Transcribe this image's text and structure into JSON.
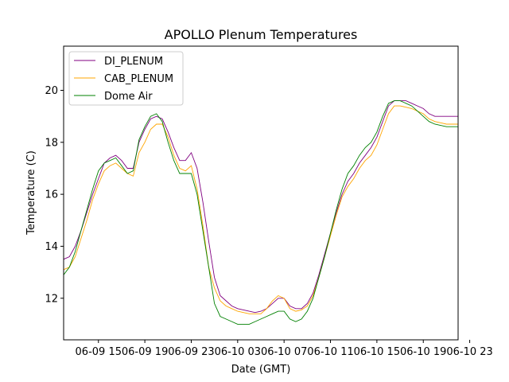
{
  "chart_data": {
    "type": "line",
    "title": "APOLLO Plenum Temperatures",
    "xlabel": "Date (GMT)",
    "ylabel": "Temperature (C)",
    "xlim": [
      0,
      34
    ],
    "ylim": [
      10.4,
      21.7
    ],
    "x_ticks": [
      {
        "x": 3,
        "label": "06-09 15"
      },
      {
        "x": 7,
        "label": "06-09 19"
      },
      {
        "x": 11,
        "label": "06-09 23"
      },
      {
        "x": 15,
        "label": "06-10 03"
      },
      {
        "x": 19,
        "label": "06-10 07"
      },
      {
        "x": 23,
        "label": "06-10 11"
      },
      {
        "x": 27,
        "label": "06-10 15"
      },
      {
        "x": 31,
        "label": "06-10 19"
      },
      {
        "x": 35,
        "label": "06-10 23"
      }
    ],
    "y_ticks": [
      12,
      14,
      16,
      18,
      20
    ],
    "legend_position": "upper-left",
    "x": [
      0,
      0.5,
      1,
      1.5,
      2,
      2.5,
      3,
      3.5,
      4,
      4.5,
      5,
      5.5,
      6,
      6.5,
      7,
      7.5,
      8,
      8.5,
      9,
      9.5,
      10,
      10.5,
      11,
      11.5,
      12,
      12.5,
      13,
      13.5,
      14,
      14.5,
      15,
      15.5,
      16,
      16.5,
      17,
      17.5,
      18,
      18.5,
      19,
      19.5,
      20,
      20.5,
      21,
      21.5,
      22,
      22.5,
      23,
      23.5,
      24,
      24.5,
      25,
      25.5,
      26,
      26.5,
      27,
      27.5,
      28,
      28.5,
      29,
      29.5,
      30,
      30.5,
      31,
      31.5,
      32,
      32.5,
      33,
      33.5,
      34
    ],
    "series": [
      {
        "name": "DI_PLENUM",
        "color": "#800080",
        "values": [
          13.5,
          13.6,
          14.0,
          14.6,
          15.3,
          16.0,
          16.6,
          17.2,
          17.4,
          17.5,
          17.3,
          17.0,
          17.0,
          18.0,
          18.5,
          18.9,
          19.0,
          18.9,
          18.4,
          17.8,
          17.3,
          17.3,
          17.6,
          17.0,
          15.7,
          14.2,
          12.8,
          12.1,
          11.9,
          11.7,
          11.6,
          11.55,
          11.5,
          11.45,
          11.5,
          11.6,
          11.8,
          12.0,
          12.0,
          11.7,
          11.6,
          11.6,
          11.8,
          12.2,
          12.9,
          13.7,
          14.5,
          15.3,
          16.0,
          16.5,
          16.8,
          17.2,
          17.5,
          17.8,
          18.2,
          18.8,
          19.4,
          19.6,
          19.6,
          19.6,
          19.5,
          19.4,
          19.3,
          19.1,
          19.0,
          19.0,
          19.0,
          19.0,
          19.0
        ]
      },
      {
        "name": "CAB_PLENUM",
        "color": "#FFA500",
        "values": [
          13.1,
          13.2,
          13.6,
          14.3,
          15.0,
          15.8,
          16.4,
          16.9,
          17.1,
          17.2,
          17.0,
          16.8,
          16.7,
          17.6,
          18.0,
          18.5,
          18.7,
          18.7,
          18.2,
          17.5,
          17.0,
          16.9,
          17.1,
          16.2,
          14.8,
          13.2,
          12.4,
          11.9,
          11.7,
          11.6,
          11.5,
          11.45,
          11.4,
          11.4,
          11.4,
          11.6,
          11.9,
          12.1,
          12.0,
          11.6,
          11.5,
          11.55,
          11.7,
          12.1,
          12.8,
          13.6,
          14.4,
          15.2,
          15.9,
          16.3,
          16.6,
          17.0,
          17.3,
          17.5,
          17.9,
          18.5,
          19.1,
          19.4,
          19.4,
          19.35,
          19.3,
          19.2,
          19.1,
          18.9,
          18.8,
          18.75,
          18.7,
          18.7,
          18.7
        ]
      },
      {
        "name": "Dome Air",
        "color": "#008000",
        "values": [
          12.9,
          13.2,
          13.8,
          14.6,
          15.4,
          16.2,
          16.9,
          17.2,
          17.3,
          17.4,
          17.1,
          16.8,
          16.9,
          18.1,
          18.6,
          19.0,
          19.1,
          18.8,
          18.0,
          17.3,
          16.8,
          16.8,
          16.8,
          16.0,
          14.6,
          13.2,
          11.8,
          11.3,
          11.2,
          11.1,
          11.0,
          11.0,
          11.0,
          11.1,
          11.2,
          11.3,
          11.4,
          11.5,
          11.5,
          11.2,
          11.1,
          11.2,
          11.5,
          12.0,
          12.8,
          13.6,
          14.5,
          15.4,
          16.2,
          16.8,
          17.1,
          17.5,
          17.8,
          18.0,
          18.4,
          19.0,
          19.5,
          19.6,
          19.6,
          19.5,
          19.4,
          19.2,
          19.0,
          18.8,
          18.7,
          18.65,
          18.6,
          18.6,
          18.6
        ]
      }
    ]
  }
}
